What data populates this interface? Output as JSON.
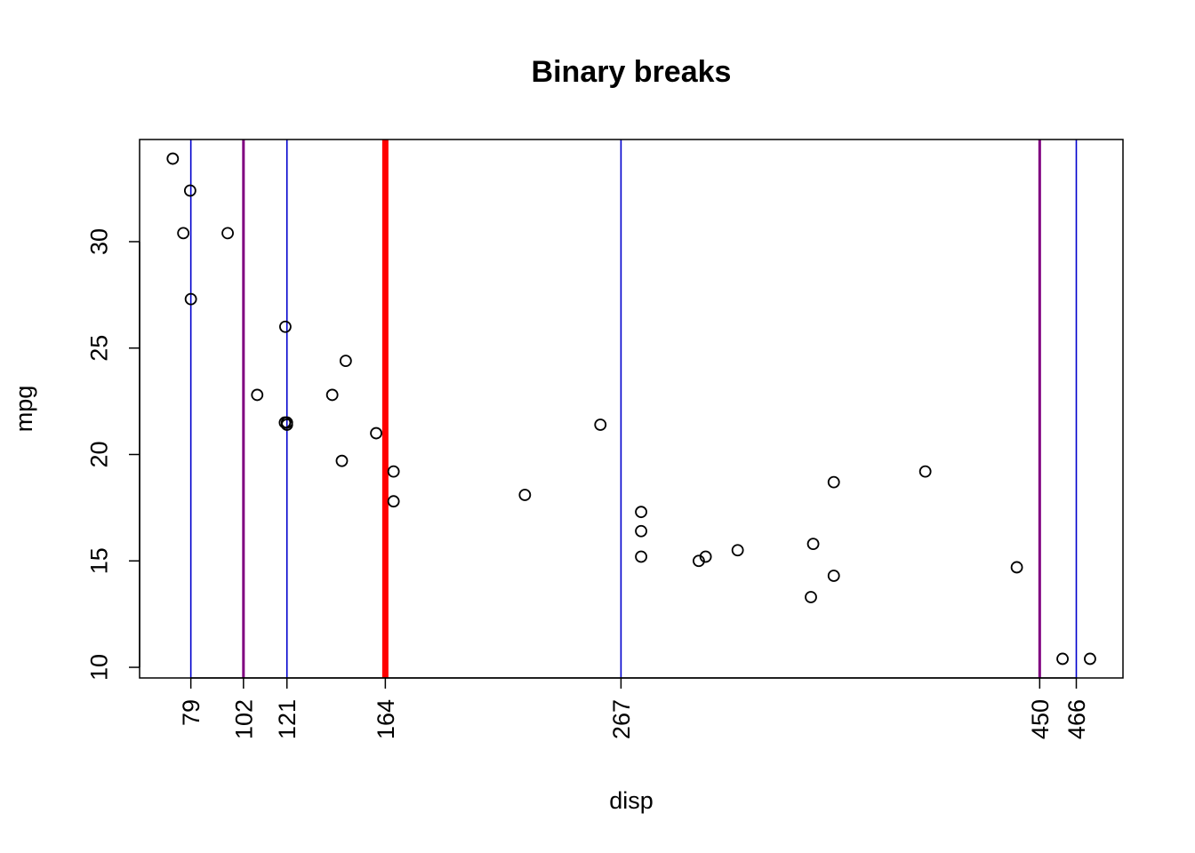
{
  "chart_data": {
    "type": "scatter",
    "title": "Binary breaks",
    "xlabel": "disp",
    "ylabel": "mpg",
    "xlim": [
      56.6,
      486.4
    ],
    "ylim": [
      9.5,
      34.8
    ],
    "y_ticks": [
      10,
      15,
      20,
      25,
      30
    ],
    "breaks": [
      {
        "value": 79,
        "label": "79",
        "color": "#0000CD",
        "weight": "thin"
      },
      {
        "value": 102,
        "label": "102",
        "color": "#800080",
        "weight": "medium"
      },
      {
        "value": 121,
        "label": "121",
        "color": "#0000CD",
        "weight": "thin"
      },
      {
        "value": 164,
        "label": "164",
        "color": "#FF0000",
        "weight": "thick"
      },
      {
        "value": 267,
        "label": "267",
        "color": "#0000CD",
        "weight": "thin"
      },
      {
        "value": 450,
        "label": "450",
        "color": "#800080",
        "weight": "medium"
      },
      {
        "value": 466,
        "label": "466",
        "color": "#0000CD",
        "weight": "thin"
      }
    ],
    "points": [
      {
        "x": 71.1,
        "y": 33.9
      },
      {
        "x": 78.7,
        "y": 32.4
      },
      {
        "x": 75.7,
        "y": 30.4
      },
      {
        "x": 95.1,
        "y": 30.4
      },
      {
        "x": 79.0,
        "y": 27.3
      },
      {
        "x": 120.3,
        "y": 26.0
      },
      {
        "x": 146.7,
        "y": 24.4
      },
      {
        "x": 108.0,
        "y": 22.8
      },
      {
        "x": 140.8,
        "y": 22.8
      },
      {
        "x": 121.0,
        "y": 21.5
      },
      {
        "x": 120.1,
        "y": 21.5
      },
      {
        "x": 258.0,
        "y": 21.4
      },
      {
        "x": 121.0,
        "y": 21.4
      },
      {
        "x": 160.0,
        "y": 21.0
      },
      {
        "x": 145.0,
        "y": 19.7
      },
      {
        "x": 167.6,
        "y": 19.2
      },
      {
        "x": 400.0,
        "y": 19.2
      },
      {
        "x": 360.0,
        "y": 18.7
      },
      {
        "x": 225.0,
        "y": 18.1
      },
      {
        "x": 167.6,
        "y": 17.8
      },
      {
        "x": 275.8,
        "y": 17.3
      },
      {
        "x": 275.8,
        "y": 16.4
      },
      {
        "x": 351.0,
        "y": 15.8
      },
      {
        "x": 318.0,
        "y": 15.5
      },
      {
        "x": 275.8,
        "y": 15.2
      },
      {
        "x": 304.0,
        "y": 15.2
      },
      {
        "x": 301.0,
        "y": 15.0
      },
      {
        "x": 440.0,
        "y": 14.7
      },
      {
        "x": 360.0,
        "y": 14.3
      },
      {
        "x": 350.0,
        "y": 13.3
      },
      {
        "x": 460.0,
        "y": 10.4
      },
      {
        "x": 472.0,
        "y": 10.4
      }
    ]
  }
}
